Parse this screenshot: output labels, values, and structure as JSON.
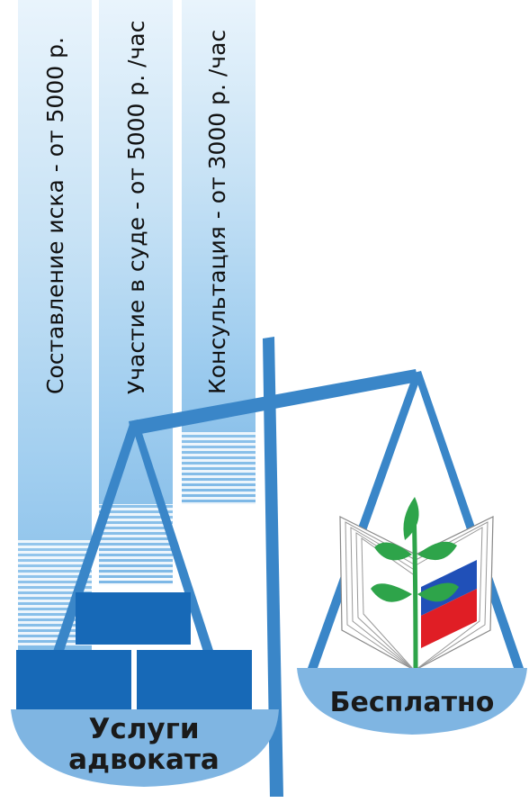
{
  "columns": [
    {
      "label": "Составление иска - от 5000 р."
    },
    {
      "label": "Участие в суде - от 5000 р. /час"
    },
    {
      "label": "Консультация - от 3000 р. /час"
    }
  ],
  "left_pan": {
    "line1": "Услуги",
    "line2": "адвоката"
  },
  "right_pan": {
    "label": "Бесплатно"
  },
  "colors": {
    "scale_blue": "#3a86c8",
    "pan_blue": "#7fb5e2",
    "brick_blue": "#1769b7",
    "column_blue": "#8fc3ea",
    "leaf_green": "#2ea44a",
    "flag_white": "#ffffff",
    "flag_blue": "#2050b8",
    "flag_red": "#e01e25"
  },
  "icons": {
    "emblem": "book-sprout-flag-icon"
  }
}
